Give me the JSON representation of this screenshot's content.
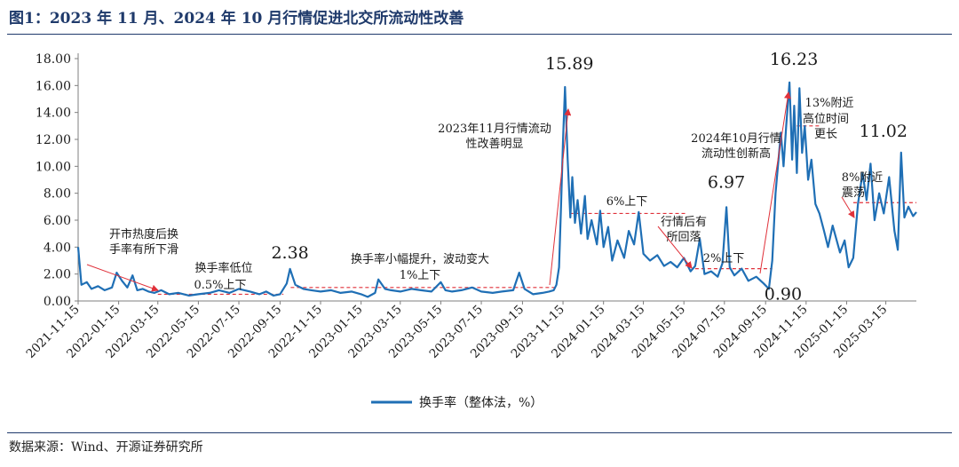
{
  "figure": {
    "title": "图1：2023 年 11 月、2024 年 10 月行情促进北交所流动性改善",
    "source": "数据来源：Wind、开源证券研究所"
  },
  "chart_data": {
    "type": "line",
    "y_ticks": [
      "0.00",
      "2.00",
      "4.00",
      "6.00",
      "8.00",
      "10.00",
      "12.00",
      "14.00",
      "16.00",
      "18.00"
    ],
    "ylim": [
      0,
      18
    ],
    "x_range": [
      "2021-11-15",
      "2025-04-30"
    ],
    "x_ticks": [
      "2021-11-15",
      "2022-01-15",
      "2022-03-15",
      "2022-05-15",
      "2022-07-15",
      "2022-09-15",
      "2022-11-15",
      "2023-01-15",
      "2023-03-15",
      "2023-05-15",
      "2023-07-15",
      "2023-09-15",
      "2023-11-15",
      "2024-01-15",
      "2024-03-15",
      "2024-05-15",
      "2024-07-15",
      "2024-09-15",
      "2024-11-15",
      "2025-01-15",
      "2025-03-15"
    ],
    "grid": false,
    "legend_position": "bottom-center",
    "series": [
      {
        "name": "换手率（整体法，%）",
        "color": "#1f6fb5",
        "points": [
          [
            "2021-11-15",
            4.0
          ],
          [
            "2021-11-20",
            1.2
          ],
          [
            "2021-11-28",
            1.4
          ],
          [
            "2021-12-05",
            0.9
          ],
          [
            "2021-12-15",
            1.1
          ],
          [
            "2021-12-25",
            0.8
          ],
          [
            "2022-01-05",
            1.0
          ],
          [
            "2022-01-12",
            2.1
          ],
          [
            "2022-01-20",
            1.5
          ],
          [
            "2022-01-28",
            1.0
          ],
          [
            "2022-02-05",
            1.9
          ],
          [
            "2022-02-12",
            0.8
          ],
          [
            "2022-02-20",
            0.9
          ],
          [
            "2022-03-01",
            0.7
          ],
          [
            "2022-03-10",
            0.6
          ],
          [
            "2022-03-20",
            0.8
          ],
          [
            "2022-04-01",
            0.5
          ],
          [
            "2022-04-15",
            0.6
          ],
          [
            "2022-05-01",
            0.4
          ],
          [
            "2022-05-15",
            0.5
          ],
          [
            "2022-06-01",
            0.6
          ],
          [
            "2022-06-15",
            0.8
          ],
          [
            "2022-07-01",
            0.6
          ],
          [
            "2022-07-15",
            0.9
          ],
          [
            "2022-08-01",
            0.7
          ],
          [
            "2022-08-15",
            0.5
          ],
          [
            "2022-08-25",
            0.7
          ],
          [
            "2022-09-05",
            0.4
          ],
          [
            "2022-09-15",
            0.5
          ],
          [
            "2022-09-25",
            1.3
          ],
          [
            "2022-09-30",
            2.38
          ],
          [
            "2022-10-08",
            1.2
          ],
          [
            "2022-10-20",
            0.9
          ],
          [
            "2022-11-01",
            0.8
          ],
          [
            "2022-11-15",
            0.7
          ],
          [
            "2022-12-01",
            0.8
          ],
          [
            "2022-12-15",
            0.6
          ],
          [
            "2023-01-01",
            0.7
          ],
          [
            "2023-01-15",
            0.5
          ],
          [
            "2023-01-25",
            0.3
          ],
          [
            "2023-02-05",
            0.6
          ],
          [
            "2023-02-10",
            1.6
          ],
          [
            "2023-02-20",
            0.9
          ],
          [
            "2023-03-01",
            0.8
          ],
          [
            "2023-03-15",
            0.7
          ],
          [
            "2023-04-01",
            0.9
          ],
          [
            "2023-04-15",
            0.8
          ],
          [
            "2023-05-01",
            0.7
          ],
          [
            "2023-05-15",
            1.4
          ],
          [
            "2023-05-22",
            0.8
          ],
          [
            "2023-06-01",
            0.7
          ],
          [
            "2023-06-15",
            0.8
          ],
          [
            "2023-07-01",
            1.0
          ],
          [
            "2023-07-15",
            0.7
          ],
          [
            "2023-08-01",
            0.6
          ],
          [
            "2023-08-15",
            0.7
          ],
          [
            "2023-09-01",
            0.8
          ],
          [
            "2023-09-10",
            2.1
          ],
          [
            "2023-09-18",
            0.9
          ],
          [
            "2023-10-01",
            0.5
          ],
          [
            "2023-10-15",
            0.6
          ],
          [
            "2023-10-25",
            0.7
          ],
          [
            "2023-11-01",
            0.8
          ],
          [
            "2023-11-05",
            1.2
          ],
          [
            "2023-11-09",
            2.5
          ],
          [
            "2023-11-12",
            7.0
          ],
          [
            "2023-11-15",
            12.0
          ],
          [
            "2023-11-18",
            15.89
          ],
          [
            "2023-11-22",
            10.5
          ],
          [
            "2023-11-26",
            6.2
          ],
          [
            "2023-11-29",
            9.2
          ],
          [
            "2023-12-03",
            5.8
          ],
          [
            "2023-12-07",
            7.5
          ],
          [
            "2023-12-12",
            5.0
          ],
          [
            "2023-12-18",
            7.8
          ],
          [
            "2023-12-22",
            4.6
          ],
          [
            "2023-12-28",
            6.0
          ],
          [
            "2024-01-05",
            4.2
          ],
          [
            "2024-01-10",
            6.7
          ],
          [
            "2024-01-15",
            4.0
          ],
          [
            "2024-01-22",
            5.5
          ],
          [
            "2024-01-28",
            3.0
          ],
          [
            "2024-02-05",
            4.5
          ],
          [
            "2024-02-15",
            3.2
          ],
          [
            "2024-02-22",
            5.2
          ],
          [
            "2024-03-01",
            4.2
          ],
          [
            "2024-03-08",
            6.6
          ],
          [
            "2024-03-15",
            3.5
          ],
          [
            "2024-03-25",
            3.0
          ],
          [
            "2024-04-05",
            3.4
          ],
          [
            "2024-04-15",
            2.6
          ],
          [
            "2024-04-25",
            2.9
          ],
          [
            "2024-05-05",
            2.5
          ],
          [
            "2024-05-15",
            3.2
          ],
          [
            "2024-05-25",
            2.2
          ],
          [
            "2024-06-01",
            2.6
          ],
          [
            "2024-06-08",
            4.6
          ],
          [
            "2024-06-15",
            2.0
          ],
          [
            "2024-06-25",
            2.2
          ],
          [
            "2024-07-05",
            1.8
          ],
          [
            "2024-07-12",
            2.8
          ],
          [
            "2024-07-18",
            6.97
          ],
          [
            "2024-07-23",
            2.5
          ],
          [
            "2024-07-30",
            1.9
          ],
          [
            "2024-08-10",
            2.4
          ],
          [
            "2024-08-20",
            1.5
          ],
          [
            "2024-09-01",
            1.8
          ],
          [
            "2024-09-12",
            1.3
          ],
          [
            "2024-09-20",
            0.9
          ],
          [
            "2024-09-25",
            3.0
          ],
          [
            "2024-09-30",
            8.0
          ],
          [
            "2024-10-08",
            12.5
          ],
          [
            "2024-10-12",
            10.0
          ],
          [
            "2024-10-16",
            13.0
          ],
          [
            "2024-10-21",
            16.23
          ],
          [
            "2024-10-25",
            10.5
          ],
          [
            "2024-10-28",
            14.5
          ],
          [
            "2024-11-01",
            9.5
          ],
          [
            "2024-11-05",
            15.8
          ],
          [
            "2024-11-09",
            11.0
          ],
          [
            "2024-11-13",
            13.0
          ],
          [
            "2024-11-18",
            9.0
          ],
          [
            "2024-11-23",
            10.5
          ],
          [
            "2024-11-29",
            7.2
          ],
          [
            "2024-12-05",
            6.5
          ],
          [
            "2024-12-12",
            5.2
          ],
          [
            "2024-12-18",
            4.0
          ],
          [
            "2024-12-25",
            5.6
          ],
          [
            "2025-01-05",
            3.6
          ],
          [
            "2025-01-12",
            4.5
          ],
          [
            "2025-01-18",
            2.5
          ],
          [
            "2025-01-25",
            3.2
          ],
          [
            "2025-02-01",
            7.2
          ],
          [
            "2025-02-08",
            9.5
          ],
          [
            "2025-02-14",
            7.5
          ],
          [
            "2025-02-20",
            10.2
          ],
          [
            "2025-02-26",
            6.0
          ],
          [
            "2025-03-05",
            8.0
          ],
          [
            "2025-03-12",
            6.5
          ],
          [
            "2025-03-20",
            9.2
          ],
          [
            "2025-03-28",
            5.2
          ],
          [
            "2025-04-02",
            3.8
          ],
          [
            "2025-04-07",
            11.02
          ],
          [
            "2025-04-12",
            6.2
          ],
          [
            "2025-04-18",
            7.0
          ],
          [
            "2025-04-25",
            6.3
          ],
          [
            "2025-04-30",
            6.6
          ]
        ]
      }
    ],
    "reference_levels": [
      {
        "label": "0.5%上下",
        "value": 0.5,
        "from": "2022-03-15",
        "to": "2022-09-20",
        "color": "#e0313a"
      },
      {
        "label": "1%上下",
        "value": 1.0,
        "from": "2022-10-01",
        "to": "2023-11-05",
        "color": "#e0313a"
      },
      {
        "label": "6%上下",
        "value": 6.5,
        "from": "2023-11-25",
        "to": "2024-05-20",
        "color": "#e0313a"
      },
      {
        "label": "2%上下",
        "value": 2.4,
        "from": "2024-06-01",
        "to": "2024-09-25",
        "color": "#e0313a"
      },
      {
        "label": "13%附近",
        "value": 13.0,
        "from": "2024-11-01",
        "to": "2024-12-05",
        "color": "#e0313a"
      },
      {
        "label": "8%附近",
        "value": 7.3,
        "from": "2025-01-25",
        "to": "2025-04-30",
        "color": "#e0313a"
      }
    ],
    "value_labels": [
      {
        "text": "15.89",
        "date": "2023-11-18",
        "value": 15.89
      },
      {
        "text": "16.23",
        "date": "2024-10-21",
        "value": 16.23
      },
      {
        "text": "11.02",
        "date": "2025-04-07",
        "value": 11.02
      },
      {
        "text": "6.97",
        "date": "2024-07-18",
        "value": 6.97
      },
      {
        "text": "2.38",
        "date": "2022-09-30",
        "value": 2.38
      },
      {
        "text": "0.90",
        "date": "2024-09-20",
        "value": 0.9
      }
    ],
    "annotations": [
      {
        "lines": [
          "开市热度后换",
          "手率有所下滑"
        ]
      },
      {
        "lines": [
          "换手率低位"
        ]
      },
      {
        "lines": [
          "换手率小幅提升，波动变大"
        ]
      },
      {
        "lines": [
          "2023年11月行情流动",
          "性改善明显"
        ]
      },
      {
        "lines": [
          "行情后有",
          "所回落"
        ]
      },
      {
        "lines": [
          "2024年10月行情",
          "流动性创新高"
        ]
      },
      {
        "lines": [
          "高位时间",
          "更长"
        ]
      },
      {
        "lines": [
          "震荡"
        ]
      }
    ]
  }
}
